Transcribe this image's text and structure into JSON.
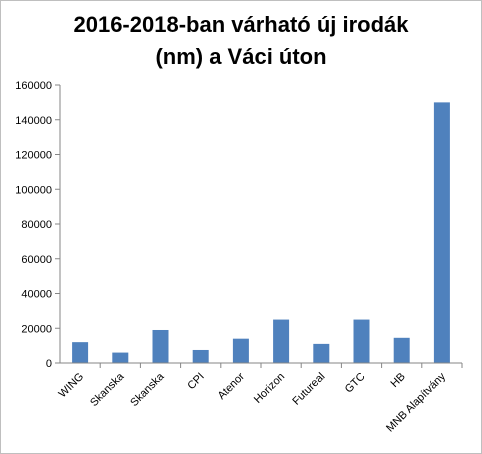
{
  "chart_data": {
    "type": "bar",
    "title_lines": [
      "2016-2018-ban várható új irodák",
      "(nm) a Váci úton"
    ],
    "categories": [
      "WING",
      "Skanska",
      "Skanska",
      "CPI",
      "Atenor",
      "Horizon",
      "Futureal",
      "GTC",
      "HB",
      "MNB Alapítvány"
    ],
    "values": [
      12000,
      6000,
      19000,
      7500,
      14000,
      25000,
      11000,
      25000,
      14500,
      150000
    ],
    "ylim": [
      0,
      160000
    ],
    "yticks": [
      0,
      20000,
      40000,
      60000,
      80000,
      100000,
      120000,
      140000,
      160000
    ],
    "bar_color": "#4f81bd",
    "grid": false,
    "legend": "none"
  }
}
